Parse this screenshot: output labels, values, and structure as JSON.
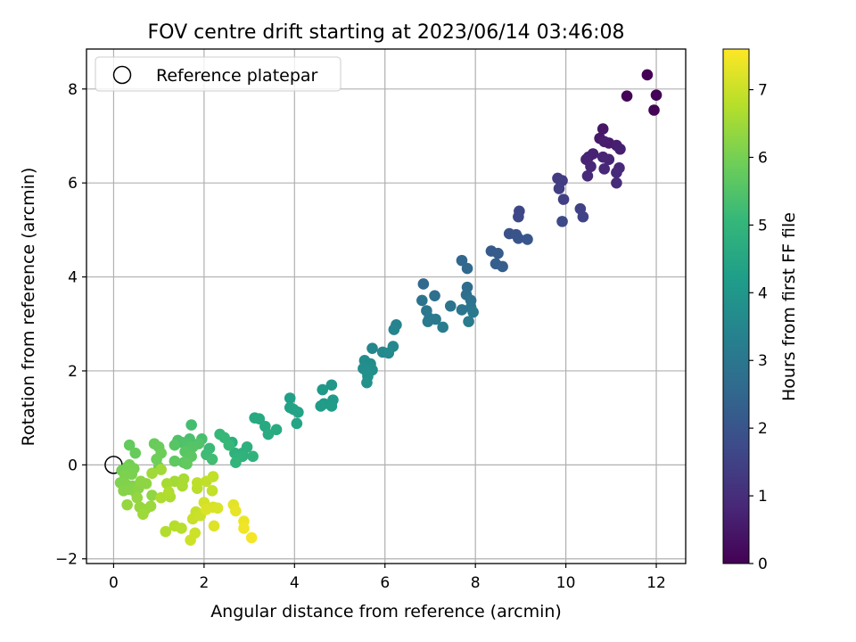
{
  "chart_data": {
    "type": "scatter",
    "title": "FOV centre drift starting at 2023/06/14 03:46:08",
    "xlabel": "Angular distance from reference (arcmin)",
    "ylabel": "Rotation from reference (arcmin)",
    "xlim": [
      -0.6,
      12.65
    ],
    "ylim": [
      -2.1,
      8.85
    ],
    "xticks": [
      0,
      2,
      4,
      6,
      8,
      10,
      12
    ],
    "yticks": [
      -2,
      0,
      2,
      4,
      6,
      8
    ],
    "grid": true,
    "legend": {
      "placement": "upper-left",
      "entries": [
        "Reference platepar"
      ]
    },
    "reference_point": {
      "x": 0,
      "y": 0
    },
    "colorbar": {
      "label": "Hours from first FF file",
      "colormap": "viridis",
      "range": [
        0,
        7.6
      ],
      "ticks": [
        0,
        1,
        2,
        3,
        4,
        5,
        6,
        7
      ],
      "colors": [
        "#440154",
        "#482878",
        "#3e4989",
        "#31688e",
        "#26828e",
        "#1f9e89",
        "#35b779",
        "#6ece58",
        "#b5de2b",
        "#fde725"
      ]
    },
    "points": [
      [
        11.8,
        8.3,
        0.02
      ],
      [
        12.0,
        7.87,
        0.04
      ],
      [
        11.35,
        7.85,
        0.06
      ],
      [
        11.95,
        7.55,
        0.08
      ],
      [
        10.82,
        7.15,
        0.45
      ],
      [
        10.75,
        6.95,
        0.5
      ],
      [
        10.95,
        6.85,
        0.55
      ],
      [
        10.85,
        6.88,
        0.6
      ],
      [
        11.12,
        6.8,
        0.62
      ],
      [
        11.2,
        6.72,
        0.65
      ],
      [
        10.6,
        6.62,
        0.7
      ],
      [
        10.5,
        6.55,
        0.72
      ],
      [
        10.45,
        6.5,
        0.75
      ],
      [
        10.82,
        6.55,
        0.78
      ],
      [
        10.95,
        6.5,
        0.8
      ],
      [
        10.55,
        6.35,
        0.82
      ],
      [
        10.85,
        6.3,
        0.85
      ],
      [
        11.18,
        6.32,
        0.88
      ],
      [
        11.12,
        6.22,
        0.9
      ],
      [
        10.48,
        6.15,
        0.92
      ],
      [
        11.12,
        6.0,
        0.95
      ],
      [
        9.82,
        6.1,
        1.3
      ],
      [
        9.92,
        6.05,
        1.35
      ],
      [
        9.85,
        5.88,
        1.4
      ],
      [
        9.95,
        5.65,
        1.45
      ],
      [
        10.32,
        5.45,
        1.5
      ],
      [
        10.38,
        5.28,
        1.55
      ],
      [
        8.97,
        5.4,
        1.6
      ],
      [
        8.95,
        5.28,
        1.65
      ],
      [
        9.92,
        5.18,
        1.7
      ],
      [
        8.75,
        4.92,
        1.9
      ],
      [
        8.9,
        4.9,
        1.95
      ],
      [
        8.95,
        4.82,
        2.0
      ],
      [
        9.15,
        4.8,
        2.05
      ],
      [
        8.35,
        4.55,
        2.15
      ],
      [
        8.5,
        4.5,
        2.2
      ],
      [
        8.45,
        4.28,
        2.25
      ],
      [
        8.6,
        4.22,
        2.3
      ],
      [
        7.7,
        4.35,
        2.5
      ],
      [
        7.82,
        4.18,
        2.55
      ],
      [
        6.85,
        3.85,
        2.6
      ],
      [
        7.82,
        3.78,
        2.7
      ],
      [
        7.8,
        3.62,
        2.75
      ],
      [
        7.1,
        3.6,
        2.8
      ],
      [
        7.9,
        3.5,
        2.85
      ],
      [
        6.82,
        3.5,
        2.9
      ],
      [
        7.45,
        3.38,
        2.92
      ],
      [
        7.7,
        3.3,
        2.95
      ],
      [
        7.9,
        3.35,
        3.0
      ],
      [
        6.92,
        3.28,
        3.02
      ],
      [
        7.95,
        3.25,
        3.05
      ],
      [
        6.98,
        3.12,
        3.08
      ],
      [
        7.12,
        3.1,
        3.1
      ],
      [
        6.95,
        3.05,
        3.12
      ],
      [
        7.85,
        3.05,
        3.15
      ],
      [
        7.28,
        2.93,
        3.18
      ],
      [
        6.25,
        2.98,
        3.4
      ],
      [
        6.2,
        2.88,
        3.45
      ],
      [
        5.72,
        2.48,
        3.5
      ],
      [
        6.18,
        2.52,
        3.55
      ],
      [
        5.95,
        2.4,
        3.6
      ],
      [
        6.08,
        2.38,
        3.62
      ],
      [
        5.55,
        2.22,
        3.7
      ],
      [
        5.68,
        2.15,
        3.72
      ],
      [
        5.52,
        2.05,
        3.75
      ],
      [
        5.72,
        2.02,
        3.78
      ],
      [
        5.6,
        1.98,
        3.8
      ],
      [
        5.62,
        1.88,
        3.82
      ],
      [
        5.6,
        1.75,
        3.85
      ],
      [
        4.82,
        1.7,
        4.0
      ],
      [
        4.62,
        1.6,
        4.05
      ],
      [
        4.85,
        1.38,
        4.1
      ],
      [
        4.65,
        1.3,
        4.12
      ],
      [
        4.58,
        1.25,
        4.15
      ],
      [
        4.82,
        1.25,
        4.18
      ],
      [
        3.9,
        1.42,
        4.3
      ],
      [
        3.9,
        1.22,
        4.35
      ],
      [
        3.98,
        1.18,
        4.38
      ],
      [
        4.08,
        1.12,
        4.4
      ],
      [
        4.05,
        0.88,
        4.45
      ],
      [
        3.12,
        1.0,
        4.55
      ],
      [
        3.22,
        0.98,
        4.58
      ],
      [
        3.35,
        0.82,
        4.6
      ],
      [
        3.6,
        0.75,
        4.62
      ],
      [
        3.42,
        0.65,
        4.65
      ],
      [
        2.62,
        0.48,
        4.75
      ],
      [
        2.95,
        0.38,
        4.8
      ],
      [
        2.85,
        0.25,
        4.82
      ],
      [
        2.68,
        0.25,
        4.85
      ],
      [
        2.85,
        0.18,
        4.88
      ],
      [
        3.08,
        0.18,
        4.9
      ],
      [
        2.75,
        0.15,
        4.92
      ],
      [
        2.7,
        0.05,
        4.95
      ],
      [
        2.35,
        0.65,
        5.05
      ],
      [
        2.45,
        0.58,
        5.08
      ],
      [
        2.55,
        0.42,
        5.1
      ],
      [
        2.12,
        0.35,
        5.15
      ],
      [
        2.05,
        0.22,
        5.2
      ],
      [
        2.18,
        0.12,
        5.25
      ],
      [
        1.72,
        0.85,
        5.3
      ],
      [
        1.95,
        0.55,
        5.35
      ],
      [
        1.68,
        0.55,
        5.38
      ],
      [
        1.5,
        0.48,
        5.4
      ],
      [
        1.42,
        0.52,
        5.45
      ],
      [
        1.62,
        0.45,
        5.48
      ],
      [
        1.88,
        0.45,
        5.5
      ],
      [
        1.75,
        0.38,
        5.55
      ],
      [
        1.35,
        0.42,
        5.58
      ],
      [
        1.58,
        0.28,
        5.6
      ],
      [
        1.72,
        0.18,
        5.65
      ],
      [
        1.55,
        0.05,
        5.68
      ],
      [
        1.35,
        0.08,
        5.7
      ],
      [
        1.62,
        0.02,
        5.72
      ],
      [
        0.35,
        0.42,
        5.75
      ],
      [
        0.48,
        0.25,
        5.8
      ],
      [
        0.9,
        0.45,
        5.82
      ],
      [
        1.0,
        0.38,
        5.85
      ],
      [
        1.05,
        0.25,
        5.88
      ],
      [
        0.95,
        0.12,
        5.9
      ],
      [
        1.0,
        -0.05,
        5.92
      ],
      [
        0.35,
        0.0,
        5.95
      ],
      [
        0.18,
        -0.12,
        5.98
      ],
      [
        0.3,
        -0.05,
        6.0
      ],
      [
        0.45,
        -0.08,
        6.02
      ],
      [
        0.4,
        -0.2,
        6.05
      ],
      [
        0.25,
        -0.22,
        6.08
      ],
      [
        0.15,
        -0.38,
        6.1
      ],
      [
        0.28,
        -0.42,
        6.12
      ],
      [
        0.42,
        -0.45,
        6.15
      ],
      [
        0.35,
        -0.52,
        6.18
      ],
      [
        0.22,
        -0.55,
        6.2
      ],
      [
        0.48,
        -0.58,
        6.22
      ],
      [
        0.55,
        -0.5,
        6.25
      ],
      [
        0.6,
        -0.35,
        6.28
      ],
      [
        0.72,
        -0.4,
        6.3
      ],
      [
        0.85,
        -0.65,
        6.32
      ],
      [
        0.52,
        -0.7,
        6.35
      ],
      [
        0.3,
        -0.85,
        6.38
      ],
      [
        0.58,
        -0.9,
        6.4
      ],
      [
        0.7,
        -0.95,
        6.42
      ],
      [
        0.82,
        -0.88,
        6.45
      ],
      [
        0.65,
        -1.05,
        6.48
      ],
      [
        0.85,
        -0.18,
        6.5
      ],
      [
        1.05,
        -0.1,
        6.52
      ],
      [
        1.35,
        -0.35,
        6.55
      ],
      [
        1.18,
        -0.4,
        6.58
      ],
      [
        1.55,
        -0.3,
        6.6
      ],
      [
        1.52,
        -0.45,
        6.62
      ],
      [
        1.25,
        -0.68,
        6.65
      ],
      [
        1.05,
        -0.7,
        6.68
      ],
      [
        1.22,
        -0.58,
        6.7
      ],
      [
        1.15,
        -1.42,
        6.72
      ],
      [
        1.35,
        -1.3,
        6.75
      ],
      [
        1.5,
        -1.35,
        6.78
      ],
      [
        1.85,
        -0.5,
        6.8
      ],
      [
        1.85,
        -0.38,
        6.85
      ],
      [
        2.05,
        -0.35,
        6.88
      ],
      [
        2.2,
        -0.25,
        6.9
      ],
      [
        2.18,
        -0.55,
        6.92
      ],
      [
        1.82,
        -1.0,
        6.95
      ],
      [
        1.75,
        -1.15,
        6.98
      ],
      [
        1.92,
        -1.08,
        7.0
      ],
      [
        1.8,
        -1.45,
        7.02
      ],
      [
        1.7,
        -1.6,
        7.05
      ],
      [
        2.0,
        -0.8,
        7.1
      ],
      [
        2.2,
        -0.9,
        7.15
      ],
      [
        2.3,
        -0.92,
        7.18
      ],
      [
        2.05,
        -0.95,
        7.2
      ],
      [
        2.22,
        -1.3,
        7.25
      ],
      [
        2.65,
        -0.85,
        7.3
      ],
      [
        2.7,
        -0.98,
        7.35
      ],
      [
        2.88,
        -1.2,
        7.4
      ],
      [
        2.88,
        -1.35,
        7.45
      ],
      [
        3.05,
        -1.55,
        7.5
      ]
    ]
  }
}
